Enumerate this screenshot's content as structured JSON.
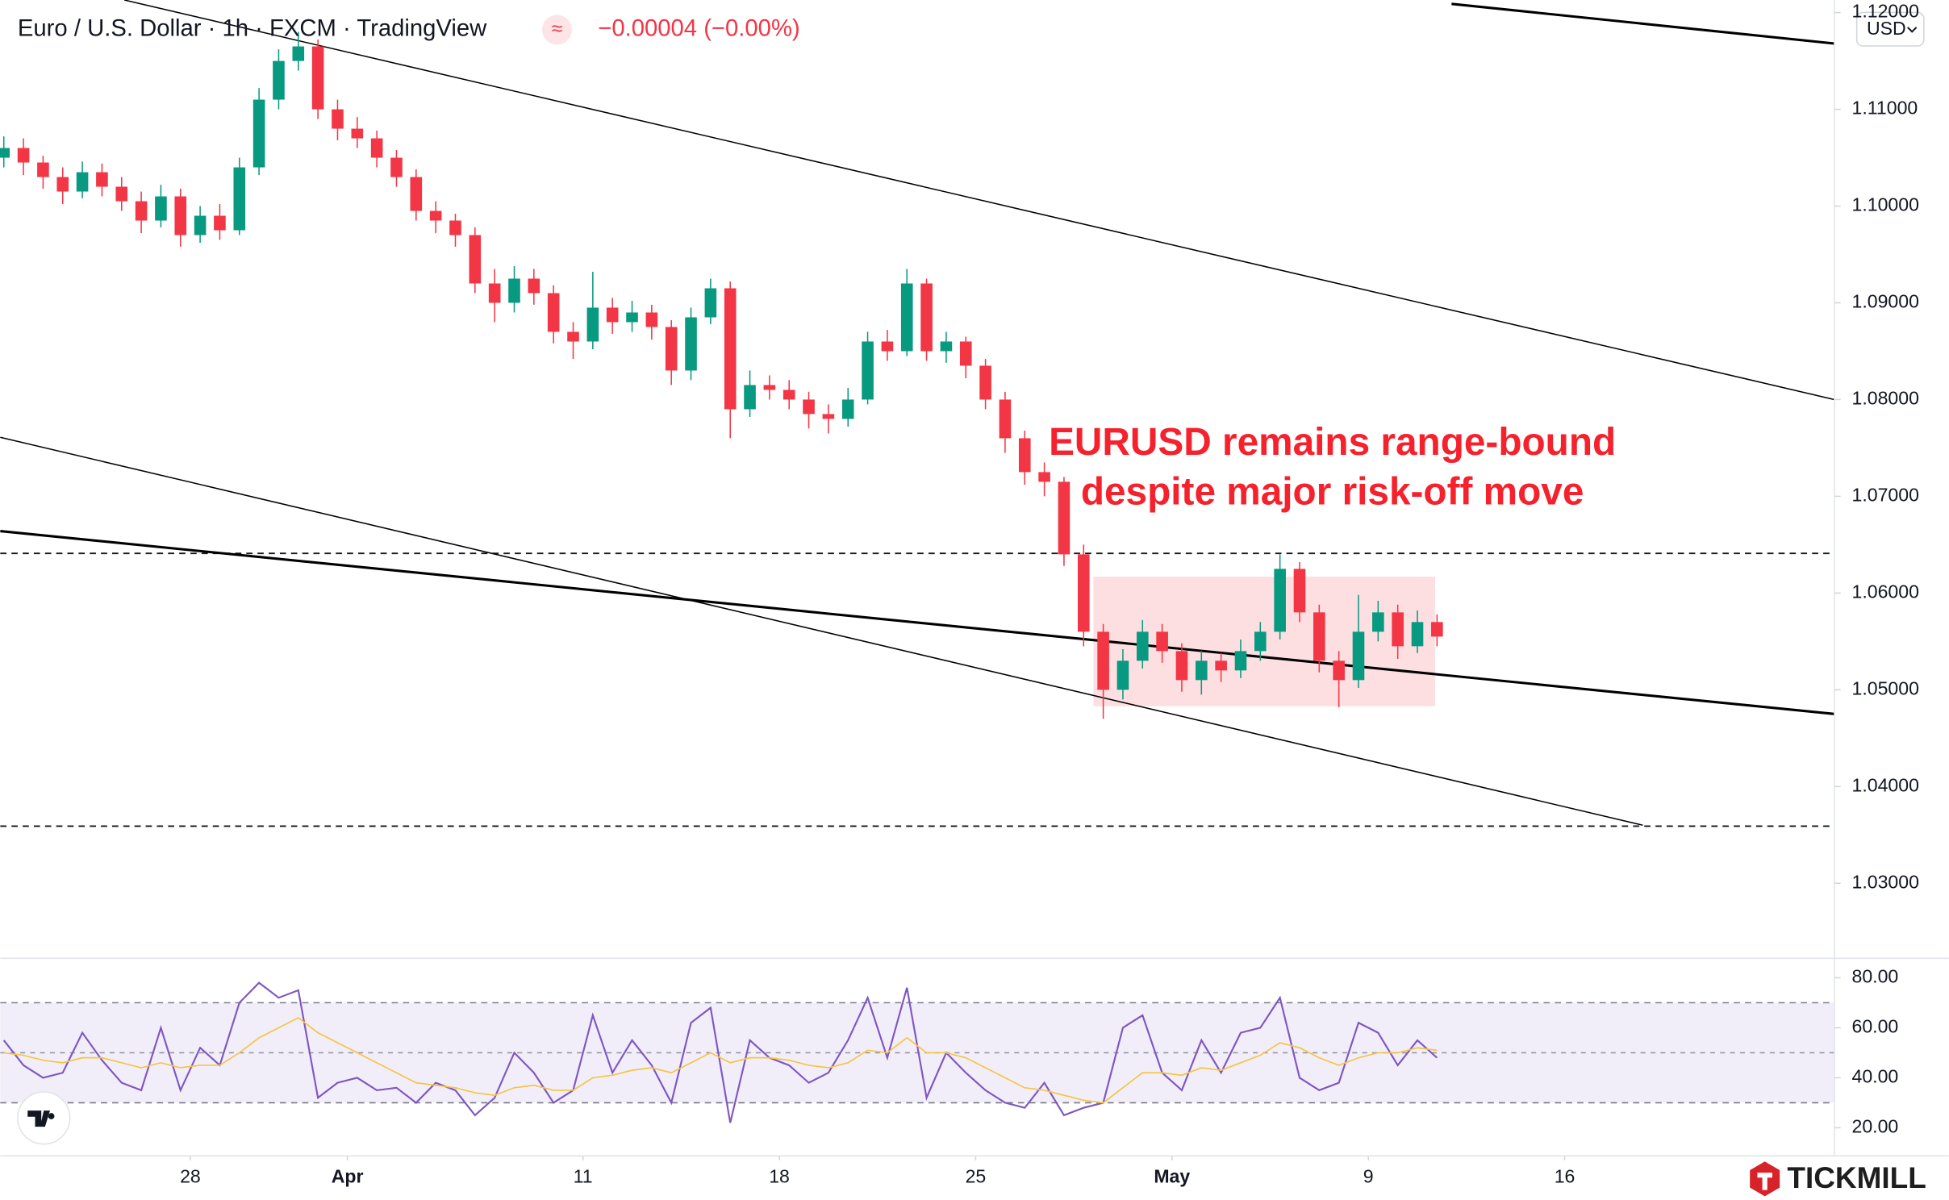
{
  "chart_data": {
    "type": "candlestick",
    "title": "Euro / U.S. Dollar · 1h · FXCM · TradingView",
    "change_label": "−0.00004 (−0.00%)",
    "currency": "USD",
    "brand": "TICKMILL",
    "annotation": [
      "EURUSD remains range-bound",
      "despite major risk-off move"
    ],
    "up_color": "#089981",
    "down_color": "#f23645",
    "x": [
      0.25,
      0.75,
      1.25,
      1.75,
      2.25,
      2.75,
      3.25,
      3.75,
      4.25,
      4.75,
      5.25,
      5.75,
      6.25,
      6.75,
      7.25,
      7.75,
      8.25,
      8.75,
      9.25,
      9.75,
      10.25,
      10.75,
      11.25,
      11.75,
      12.25,
      12.75,
      13.25,
      13.75,
      14.25,
      14.75,
      15.25,
      15.75,
      16.25,
      16.75,
      17.25,
      17.75,
      18.25,
      18.75,
      19.25,
      19.75,
      20.25,
      20.75,
      21.25,
      21.75,
      22.25,
      22.75,
      23.25,
      23.75,
      24.25,
      24.75,
      25.25,
      25.75,
      26.25,
      26.75,
      27.25,
      27.75,
      28.25,
      28.75,
      29.25,
      29.75,
      30.25,
      30.75,
      31.25,
      31.75,
      32.25,
      32.75,
      33.25,
      33.75,
      34.25,
      34.75,
      35.25,
      35.75,
      36.25,
      36.75
    ],
    "open": [
      1.105,
      1.106,
      1.1045,
      1.103,
      1.1015,
      1.1035,
      1.102,
      1.1005,
      1.0985,
      1.101,
      1.097,
      1.099,
      1.0975,
      1.104,
      1.111,
      1.115,
      1.1165,
      1.11,
      1.108,
      1.107,
      1.105,
      1.103,
      1.0995,
      1.0985,
      1.097,
      1.092,
      1.09,
      1.0925,
      1.091,
      1.087,
      1.086,
      1.0895,
      1.088,
      1.089,
      1.0875,
      1.083,
      1.0885,
      1.0915,
      1.079,
      1.0815,
      1.081,
      1.08,
      1.0785,
      1.078,
      1.08,
      1.086,
      1.085,
      1.092,
      1.085,
      1.086,
      1.0835,
      1.08,
      1.076,
      1.0725,
      1.0715,
      1.064,
      1.056,
      1.05,
      1.053,
      1.056,
      1.054,
      1.051,
      1.053,
      1.052,
      1.054,
      1.056,
      1.0625,
      1.058,
      1.053,
      1.051,
      1.056,
      1.058,
      1.0545,
      1.057
    ],
    "high": [
      1.1072,
      1.107,
      1.1052,
      1.104,
      1.1046,
      1.1044,
      1.103,
      1.1015,
      1.1022,
      1.1018,
      1.1,
      1.1002,
      1.105,
      1.1122,
      1.1162,
      1.118,
      1.1172,
      1.111,
      1.1092,
      1.1078,
      1.1058,
      1.1038,
      1.1005,
      1.0992,
      1.0978,
      1.0935,
      1.0938,
      1.0935,
      1.0918,
      1.088,
      1.0932,
      1.0905,
      1.0902,
      1.0898,
      1.0882,
      1.0895,
      1.0925,
      1.0922,
      1.083,
      1.0825,
      1.082,
      1.0808,
      1.0795,
      1.0812,
      1.087,
      1.0872,
      1.0935,
      1.0925,
      1.087,
      1.0865,
      1.0842,
      1.0808,
      1.0768,
      1.0735,
      1.072,
      1.065,
      1.0568,
      1.0542,
      1.0572,
      1.0568,
      1.0548,
      1.054,
      1.0538,
      1.0552,
      1.057,
      1.064,
      1.0632,
      1.0588,
      1.054,
      1.0598,
      1.0592,
      1.0588,
      1.0582,
      1.0578
    ],
    "low": [
      1.104,
      1.1032,
      1.1018,
      1.1002,
      1.1008,
      1.101,
      1.0995,
      1.0972,
      1.0978,
      1.0958,
      1.0962,
      1.0965,
      1.097,
      1.1032,
      1.11,
      1.114,
      1.109,
      1.1068,
      1.106,
      1.104,
      1.102,
      1.0985,
      1.0972,
      1.0958,
      1.091,
      1.088,
      1.089,
      1.0898,
      1.0858,
      1.0842,
      1.0852,
      1.0868,
      1.087,
      1.0862,
      1.0815,
      1.082,
      1.0878,
      1.076,
      1.0782,
      1.08,
      1.079,
      1.077,
      1.0765,
      1.0772,
      1.0795,
      1.084,
      1.0845,
      1.084,
      1.0838,
      1.0822,
      1.079,
      1.0745,
      1.0712,
      1.07,
      1.0628,
      1.0545,
      1.047,
      1.049,
      1.0522,
      1.0528,
      1.0498,
      1.0495,
      1.0508,
      1.0512,
      1.053,
      1.0552,
      1.057,
      1.0518,
      1.0482,
      1.0502,
      1.055,
      1.0532,
      1.0538,
      1.0545
    ],
    "close": [
      1.106,
      1.1045,
      1.103,
      1.1015,
      1.1035,
      1.102,
      1.1005,
      1.0985,
      1.101,
      1.097,
      1.099,
      1.0975,
      1.104,
      1.111,
      1.115,
      1.1165,
      1.11,
      1.108,
      1.107,
      1.105,
      1.103,
      1.0995,
      1.0985,
      1.097,
      1.092,
      1.09,
      1.0925,
      1.091,
      1.087,
      1.086,
      1.0895,
      1.088,
      1.089,
      1.0875,
      1.083,
      1.0885,
      1.0915,
      1.079,
      1.0815,
      1.081,
      1.08,
      1.0785,
      1.078,
      1.08,
      1.086,
      1.085,
      1.092,
      1.085,
      1.086,
      1.0835,
      1.08,
      1.076,
      1.0725,
      1.0715,
      1.064,
      1.056,
      1.05,
      1.053,
      1.056,
      1.054,
      1.051,
      1.053,
      1.052,
      1.054,
      1.056,
      1.0625,
      1.058,
      1.053,
      1.051,
      1.056,
      1.058,
      1.0545,
      1.057,
      1.0555
    ],
    "xlim": [
      0.16,
      46.87
    ],
    "xticks": [
      {
        "value": 5,
        "label": "28"
      },
      {
        "value": 9,
        "label": "Apr"
      },
      {
        "value": 15,
        "label": "11"
      },
      {
        "value": 20,
        "label": "18"
      },
      {
        "value": 25,
        "label": "25"
      },
      {
        "value": 30,
        "label": "May"
      },
      {
        "value": 35,
        "label": "9"
      },
      {
        "value": 40,
        "label": "16"
      }
    ],
    "ylim": [
      1.0223,
      1.1213
    ],
    "yticks": [
      {
        "value": 1.03,
        "label": "1.03000"
      },
      {
        "value": 1.04,
        "label": "1.04000"
      },
      {
        "value": 1.05,
        "label": "1.05000"
      },
      {
        "value": 1.06,
        "label": "1.06000"
      },
      {
        "value": 1.07,
        "label": "1.07000"
      },
      {
        "value": 1.08,
        "label": "1.08000"
      },
      {
        "value": 1.09,
        "label": "1.09000"
      },
      {
        "value": 1.1,
        "label": "1.10000"
      },
      {
        "value": 1.11,
        "label": "1.11000"
      },
      {
        "value": 1.12,
        "label": "1.12000"
      }
    ],
    "hlines": [
      1.0641,
      1.0359
    ],
    "trendlines": [
      {
        "x": [
          37.12,
          46.87
        ],
        "y": [
          1.1209,
          1.1168
        ],
        "width": 2
      },
      {
        "x": [
          3.32,
          46.87
        ],
        "y": [
          1.1213,
          1.08
        ],
        "width": 1
      },
      {
        "x": [
          0.16,
          41.99
        ],
        "y": [
          1.0761,
          1.036
        ],
        "width": 1
      },
      {
        "x": [
          0.16,
          46.87
        ],
        "y": [
          1.0664,
          1.0475
        ],
        "width": 2
      }
    ],
    "range_box": {
      "x": [
        28.0,
        36.7
      ],
      "y": [
        1.0483,
        1.0617
      ]
    },
    "rsi": {
      "type": "line",
      "ylim": [
        9,
        87
      ],
      "yticks": [
        {
          "value": 20,
          "label": "20.00"
        },
        {
          "value": 40,
          "label": "40.00"
        },
        {
          "value": 60,
          "label": "60.00"
        },
        {
          "value": 80,
          "label": "80.00"
        }
      ],
      "bands": [
        30,
        50,
        70
      ],
      "band_color": "#7e57c2",
      "series": [
        {
          "color": "#7e57c2",
          "values": [
            55,
            45,
            40,
            42,
            58,
            47,
            38,
            35,
            60,
            35,
            52,
            45,
            70,
            78,
            72,
            75,
            32,
            38,
            40,
            35,
            36,
            30,
            38,
            35,
            25,
            32,
            50,
            42,
            30,
            35,
            65,
            42,
            55,
            45,
            30,
            62,
            68,
            22,
            55,
            48,
            45,
            38,
            42,
            55,
            72,
            48,
            76,
            32,
            50,
            42,
            35,
            30,
            28,
            38,
            25,
            28,
            30,
            60,
            65,
            42,
            35,
            55,
            42,
            58,
            60,
            72,
            40,
            35,
            38,
            62,
            58,
            45,
            55,
            48
          ]
        },
        {
          "color": "#f5c542",
          "values": [
            50,
            49,
            47,
            46,
            48,
            48,
            46,
            44,
            46,
            44,
            45,
            45,
            50,
            56,
            60,
            64,
            58,
            54,
            50,
            46,
            42,
            38,
            37,
            36,
            34,
            33,
            36,
            37,
            35,
            35,
            40,
            41,
            43,
            44,
            42,
            46,
            50,
            46,
            48,
            48,
            47,
            45,
            44,
            46,
            51,
            50,
            56,
            50,
            50,
            48,
            44,
            40,
            36,
            35,
            33,
            31,
            30,
            36,
            42,
            42,
            41,
            44,
            43,
            46,
            49,
            54,
            52,
            48,
            45,
            48,
            50,
            50,
            52,
            51
          ]
        }
      ]
    }
  }
}
